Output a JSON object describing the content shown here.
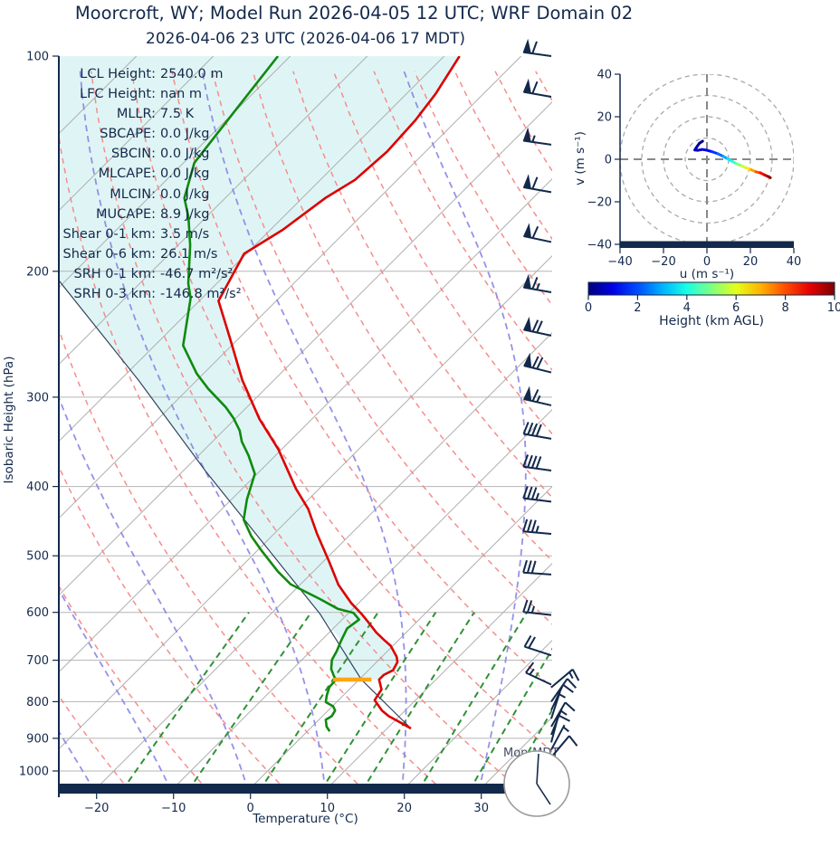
{
  "title": "Moorcroft, WY; Model Run 2026-04-05 12 UTC; WRF Domain 02",
  "subtitle": "2026-04-06 23 UTC  (2026-04-06 17 MDT)",
  "stats": [
    {
      "label": "LCL Height:",
      "value": "2540.0 m"
    },
    {
      "label": "LFC Height:",
      "value": "nan m"
    },
    {
      "label": "MLLR:",
      "value": "7.5 K"
    },
    {
      "label": "SBCAPE:",
      "value": "0.0 J/kg"
    },
    {
      "label": "SBCIN:",
      "value": "0.0 J/kg"
    },
    {
      "label": "MLCAPE:",
      "value": "0.0 J/kg"
    },
    {
      "label": "MLCIN:",
      "value": "0.0 J/kg"
    },
    {
      "label": "MUCAPE:",
      "value": "8.9 J/kg"
    },
    {
      "label": "Shear 0-1 km:",
      "value": "3.5 m/s"
    },
    {
      "label": "Shear 0-6 km:",
      "value": "26.1 m/s"
    },
    {
      "label": "SRH 0-1 km:",
      "value": "-46.7 m²/s²"
    },
    {
      "label": "SRH 0-3 km:",
      "value": "-146.8 m²/s²"
    }
  ],
  "skewt": {
    "xlabel": "Temperature (°C)",
    "ylabel": "Isobaric Height (hPa)",
    "day_label": "Mon-MDT",
    "colors": {
      "accent_navy": "#13294b",
      "temperature": "#dd0000",
      "dewpoint": "#0f8a0f",
      "parcel": "#35445f",
      "shade": "#dff5f5",
      "isotherm": "#adadad",
      "grid": "#b5b5b5",
      "dry_adiabat": "#f58787",
      "moist_adiabat": "#8886e6",
      "mixing_ratio": "#2e9134",
      "lcl": "#ffa415"
    }
  },
  "chart_data": {
    "type": "skewt-log-p-sounding",
    "pressure_axis": {
      "label": "Isobaric Height (hPa)",
      "scale": "log",
      "ticks": [
        100,
        200,
        300,
        400,
        500,
        600,
        700,
        800,
        900,
        1000
      ],
      "range": [
        100,
        1065
      ]
    },
    "temperature_axis": {
      "label": "Temperature (°C)",
      "ticks": [
        -20,
        -10,
        0,
        10,
        20,
        30
      ],
      "tick_labels": [
        "−20",
        "−10",
        "0",
        "10",
        "20",
        "30"
      ],
      "range": [
        -25,
        39
      ],
      "skew_deg": 45
    },
    "temperature_profile": {
      "name": "Temperature",
      "color": "#dd0000",
      "points_p_T": [
        [
          100,
          -68
        ],
        [
          113,
          -66.2
        ],
        [
          123,
          -65.4
        ],
        [
          136,
          -65
        ],
        [
          149,
          -65.5
        ],
        [
          158,
          -67
        ],
        [
          175,
          -68.4
        ],
        [
          189,
          -70.3
        ],
        [
          220,
          -67.5
        ],
        [
          247,
          -61.4
        ],
        [
          284,
          -54.1
        ],
        [
          322,
          -46.8
        ],
        [
          355,
          -40.4
        ],
        [
          403,
          -33
        ],
        [
          430,
          -28.8
        ],
        [
          466,
          -24.4
        ],
        [
          508,
          -19.4
        ],
        [
          549,
          -15
        ],
        [
          582,
          -11
        ],
        [
          603,
          -8.2
        ],
        [
          618,
          -6.4
        ],
        [
          640,
          -3.9
        ],
        [
          655,
          -2
        ],
        [
          668,
          -0.3
        ],
        [
          692,
          1.9
        ],
        [
          704,
          2.7
        ],
        [
          723,
          3.2
        ],
        [
          734,
          2.6
        ],
        [
          745,
          2.6
        ],
        [
          769,
          4.2
        ],
        [
          796,
          4.7
        ],
        [
          823,
          7
        ],
        [
          838,
          8.6
        ],
        [
          855,
          10.9
        ],
        [
          872,
          13.1
        ]
      ]
    },
    "dewpoint_profile": {
      "name": "Dewpoint",
      "color": "#0f8a0f",
      "points_p_T": [
        [
          100,
          -91.6
        ],
        [
          119,
          -90.1
        ],
        [
          141,
          -88.6
        ],
        [
          158,
          -85.3
        ],
        [
          168,
          -82.3
        ],
        [
          184,
          -78.4
        ],
        [
          208,
          -73.7
        ],
        [
          218,
          -71.5
        ],
        [
          254,
          -66.3
        ],
        [
          278,
          -60.9
        ],
        [
          292,
          -57.4
        ],
        [
          310,
          -52.7
        ],
        [
          321,
          -50.3
        ],
        [
          334,
          -47.9
        ],
        [
          346,
          -46.2
        ],
        [
          362,
          -43.5
        ],
        [
          384,
          -40.3
        ],
        [
          417,
          -38
        ],
        [
          445,
          -35.8
        ],
        [
          469,
          -32.7
        ],
        [
          492,
          -29.4
        ],
        [
          526,
          -24.6
        ],
        [
          548,
          -21.3
        ],
        [
          575,
          -15.5
        ],
        [
          593,
          -12
        ],
        [
          601,
          -9.4
        ],
        [
          614,
          -7.8
        ],
        [
          632,
          -8.2
        ],
        [
          657,
          -7.4
        ],
        [
          680,
          -6.6
        ],
        [
          699,
          -6.1
        ],
        [
          720,
          -5
        ],
        [
          737,
          -3.7
        ],
        [
          745,
          -3
        ],
        [
          763,
          -2.9
        ],
        [
          785,
          -2.1
        ],
        [
          801,
          -1.4
        ],
        [
          812,
          0.1
        ],
        [
          823,
          0.9
        ],
        [
          838,
          1.2
        ],
        [
          848,
          0.9
        ],
        [
          867,
          1.9
        ],
        [
          880,
          2.9
        ]
      ]
    },
    "parcel_profile": {
      "points_p_T": [
        [
          872,
          13.1
        ],
        [
          745,
          0.3
        ],
        [
          603,
          -13.6
        ],
        [
          381,
          -47
        ],
        [
          284,
          -67.6
        ],
        [
          206,
          -90.9
        ]
      ]
    },
    "lcl_marker": {
      "pressure_hPa": 745,
      "t_span": [
        -3.4,
        1.6
      ],
      "height_m": 2540
    },
    "shading": {
      "fill": "#dff5f5",
      "description": "negative-buoyancy area between parcel profile and temperature"
    },
    "background_lines": {
      "isotherms_every_C": 10,
      "dry_adiabats_theta_C": [
        -60,
        200,
        10
      ],
      "moist_adiabats_start_C": [
        -60,
        40,
        10
      ],
      "mixing_ratio_g_kg": [
        1,
        2,
        4,
        7,
        10,
        16,
        24,
        32
      ],
      "mixing_ratio_top_hPa": 600
    },
    "wind_barbs": [
      [
        100,
        172,
        1,
        1,
        0
      ],
      [
        114,
        170,
        1,
        1,
        0
      ],
      [
        133,
        172,
        1,
        0,
        1
      ],
      [
        155,
        170,
        1,
        1,
        0
      ],
      [
        182,
        168,
        1,
        1,
        0
      ],
      [
        214,
        170,
        1,
        1,
        1
      ],
      [
        246,
        168,
        1,
        2,
        0
      ],
      [
        277,
        166,
        1,
        2,
        0
      ],
      [
        308,
        167,
        1,
        1,
        1
      ],
      [
        343,
        170,
        0,
        4,
        0
      ],
      [
        380,
        172,
        0,
        4,
        0
      ],
      [
        420,
        173,
        0,
        3,
        1
      ],
      [
        466,
        175,
        0,
        3,
        1
      ],
      [
        531,
        176,
        0,
        3,
        0
      ],
      [
        605,
        174,
        0,
        2,
        1
      ],
      [
        689,
        162,
        0,
        2,
        0
      ],
      [
        757,
        155,
        0,
        1,
        1
      ],
      [
        764,
        40,
        0,
        1,
        1
      ],
      [
        800,
        55,
        0,
        1,
        0
      ],
      [
        822,
        65,
        0,
        1,
        0
      ],
      [
        845,
        72,
        0,
        0,
        1
      ],
      [
        867,
        60,
        0,
        1,
        0
      ],
      [
        890,
        68,
        0,
        0,
        1
      ],
      [
        912,
        75,
        0,
        1,
        0
      ],
      [
        934,
        62,
        0,
        0,
        1
      ],
      [
        957,
        50,
        0,
        1,
        0
      ],
      [
        983,
        -55,
        0,
        0,
        1
      ]
    ],
    "hodograph": {
      "u_label": "u (m s⁻¹)",
      "v_label": "v (m s⁻¹)",
      "u_ticks": [
        -40,
        -20,
        0,
        20,
        40
      ],
      "u_tick_labels": [
        "−40",
        "−20",
        "0",
        "20",
        "40"
      ],
      "v_tick_labels": [
        "40",
        "20",
        "0",
        "−20",
        "−40"
      ],
      "rings": [
        10,
        20,
        30,
        40
      ],
      "trace_u_v_km": [
        [
          -2,
          8.5,
          0.1
        ],
        [
          -3.5,
          7.5,
          0.2
        ],
        [
          -4.8,
          5.6,
          0.35
        ],
        [
          -5.6,
          4.4,
          0.5
        ],
        [
          -4.2,
          4.2,
          0.7
        ],
        [
          -2.2,
          4.6,
          0.9
        ],
        [
          -0.2,
          4.3,
          1.1
        ],
        [
          2.2,
          3.6,
          1.5
        ],
        [
          5,
          2.6,
          2
        ],
        [
          7.6,
          1.3,
          2.6
        ],
        [
          9.6,
          0.2,
          3.2
        ],
        [
          11.6,
          -1,
          3.9
        ],
        [
          13.6,
          -2.1,
          4.6
        ],
        [
          16,
          -3.1,
          5.4
        ],
        [
          18.2,
          -4.1,
          6.1
        ],
        [
          20.3,
          -4.9,
          6.8
        ],
        [
          22.6,
          -5.9,
          7.6
        ],
        [
          24.6,
          -6.4,
          8.3
        ],
        [
          26.6,
          -7.4,
          9
        ],
        [
          28.1,
          -8.1,
          9.5
        ],
        [
          29.2,
          -8.7,
          10
        ]
      ]
    },
    "colorbar": {
      "label": "Height (km AGL)",
      "ticks": [
        0,
        2,
        4,
        6,
        8,
        10
      ],
      "range": [
        0,
        10
      ],
      "colormap": "jet"
    }
  }
}
